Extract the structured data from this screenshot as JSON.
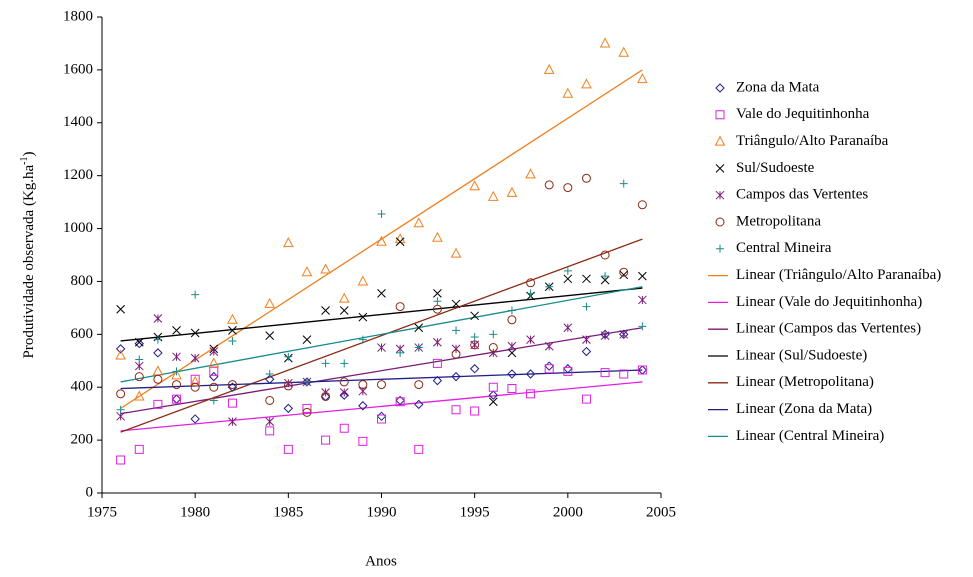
{
  "chart_data": {
    "type": "scatter",
    "x_label": "Anos",
    "y_label": "Produtividade observada (Kg.ha",
    "y_label_sup": "-1",
    "y_label_end": ")",
    "xlim": [
      1975,
      2005
    ],
    "xticks": [
      1975,
      1980,
      1985,
      1990,
      1995,
      2000,
      2005
    ],
    "ylim": [
      0,
      1800
    ],
    "yticks": [
      0,
      200,
      400,
      600,
      800,
      1000,
      1200,
      1400,
      1600,
      1800
    ],
    "grid": false,
    "legend": "right",
    "x": [
      1976,
      1977,
      1978,
      1979,
      1980,
      1981,
      1982,
      1983,
      1984,
      1985,
      1986,
      1987,
      1988,
      1989,
      1990,
      1991,
      1992,
      1993,
      1994,
      1995,
      1996,
      1997,
      1998,
      1999,
      2000,
      2001,
      2002,
      2003,
      2004
    ],
    "series": [
      {
        "name": "Zona da Mata",
        "color": "#1f1f8a",
        "marker": "diamond",
        "values": [
          545,
          565,
          530,
          355,
          280,
          440,
          400,
          null,
          430,
          320,
          420,
          365,
          370,
          330,
          290,
          350,
          335,
          425,
          440,
          470,
          370,
          450,
          450,
          480,
          470,
          535,
          600,
          600,
          465
        ]
      },
      {
        "name": "Vale do Jequitinhonha",
        "color": "#e020e0",
        "marker": "square",
        "values": [
          125,
          165,
          335,
          355,
          430,
          460,
          340,
          null,
          235,
          165,
          320,
          200,
          245,
          195,
          280,
          345,
          165,
          490,
          315,
          310,
          400,
          395,
          375,
          470,
          460,
          355,
          455,
          450,
          465
        ]
      },
      {
        "name": "Triângulo/Alto Paranaíba",
        "color": "#f07f1e",
        "marker": "triangle",
        "values": [
          520,
          365,
          460,
          445,
          420,
          490,
          655,
          null,
          715,
          945,
          835,
          845,
          735,
          800,
          950,
          960,
          1020,
          965,
          905,
          1160,
          1120,
          1135,
          1205,
          1600,
          1510,
          1545,
          1700,
          1665,
          1565
        ]
      },
      {
        "name": "Sul/Sudoeste",
        "color": "#000000",
        "marker": "x",
        "values": [
          695,
          570,
          590,
          615,
          605,
          545,
          615,
          null,
          595,
          510,
          580,
          690,
          690,
          665,
          755,
          950,
          625,
          755,
          715,
          670,
          345,
          530,
          745,
          780,
          810,
          810,
          805,
          825,
          820
        ]
      },
      {
        "name": "Campos das Vertentes",
        "color": "#7a1a7a",
        "marker": "asterisk",
        "values": [
          290,
          480,
          660,
          515,
          510,
          535,
          270,
          null,
          270,
          415,
          420,
          380,
          380,
          385,
          550,
          545,
          550,
          570,
          545,
          560,
          530,
          555,
          580,
          555,
          625,
          580,
          595,
          600,
          730
        ]
      },
      {
        "name": "Metropolitana",
        "color": "#8b2a14",
        "marker": "circle",
        "values": [
          375,
          440,
          430,
          410,
          400,
          400,
          410,
          null,
          350,
          405,
          305,
          365,
          420,
          410,
          410,
          705,
          410,
          695,
          525,
          560,
          550,
          655,
          795,
          1165,
          1155,
          1190,
          900,
          835,
          1090
        ]
      },
      {
        "name": "Central Mineira",
        "color": "#1a8a8a",
        "marker": "plus",
        "values": [
          315,
          505,
          580,
          460,
          750,
          350,
          575,
          null,
          450,
          515,
          420,
          490,
          490,
          580,
          1055,
          530,
          550,
          725,
          615,
          590,
          600,
          690,
          755,
          780,
          840,
          705,
          820,
          1170,
          630
        ]
      }
    ],
    "trendlines": [
      {
        "name": "Linear (Triângulo/Alto Paranaíba)",
        "color": "#f07f1e",
        "x": [
          1976,
          2004
        ],
        "values": [
          320,
          1600
        ]
      },
      {
        "name": "Linear (Vale do Jequitinhonha)",
        "color": "#e020e0",
        "x": [
          1976,
          2004
        ],
        "values": [
          235,
          420
        ]
      },
      {
        "name": "Linear (Campos das Vertentes)",
        "color": "#7a1a7a",
        "x": [
          1976,
          2004
        ],
        "values": [
          300,
          625
        ]
      },
      {
        "name": "Linear (Sul/Sudoeste)",
        "color": "#000000",
        "x": [
          1976,
          2004
        ],
        "values": [
          575,
          775
        ]
      },
      {
        "name": "Linear (Metropolitana)",
        "color": "#8b2a14",
        "x": [
          1976,
          2004
        ],
        "values": [
          230,
          960
        ]
      },
      {
        "name": "Linear (Zona da Mata)",
        "color": "#1f1f8a",
        "x": [
          1976,
          2004
        ],
        "values": [
          395,
          465
        ]
      },
      {
        "name": "Linear (Central Mineira)",
        "color": "#1a8a8a",
        "x": [
          1976,
          2004
        ],
        "values": [
          420,
          780
        ]
      }
    ]
  }
}
